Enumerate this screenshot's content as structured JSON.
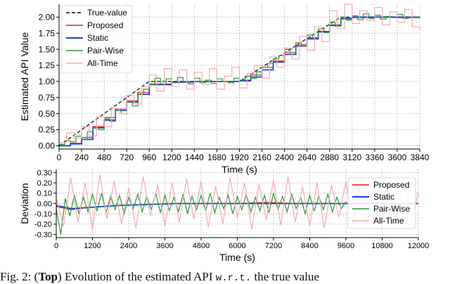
{
  "chart_data": [
    {
      "type": "line",
      "xlabel": "Time (s)",
      "ylabel": "Estimated API Value",
      "xlim": [
        0,
        3840
      ],
      "ylim": [
        -0.05,
        2.2
      ],
      "xticks": [
        0,
        240,
        480,
        720,
        960,
        1200,
        1440,
        1680,
        1920,
        2160,
        2400,
        2640,
        2880,
        3120,
        3360,
        3600,
        3840
      ],
      "yticks": [
        0.0,
        0.25,
        0.5,
        0.75,
        1.0,
        1.25,
        1.5,
        1.75,
        2.0
      ],
      "ytick_labels": [
        "0.00",
        "0.25",
        "0.50",
        "0.75",
        "1.00",
        "1.25",
        "1.50",
        "1.75",
        "2.00"
      ],
      "grid": true,
      "legend_position": "top-left",
      "series": [
        {
          "name": "True-value",
          "color": "#000000",
          "dashed": true,
          "x": [
            0,
            960,
            1920,
            3000,
            3840
          ],
          "y": [
            0.0,
            1.0,
            1.0,
            2.0,
            2.0
          ]
        },
        {
          "name": "Proposed",
          "color": "#e31a1c",
          "step": true,
          "x": [
            0,
            120,
            240,
            360,
            480,
            600,
            720,
            840,
            960,
            1200,
            1440,
            1680,
            1920,
            2040,
            2160,
            2280,
            2400,
            2520,
            2640,
            2760,
            2880,
            3000,
            3120,
            3360,
            3600,
            3840
          ],
          "y": [
            0.0,
            0.04,
            0.13,
            0.3,
            0.44,
            0.57,
            0.7,
            0.83,
            0.96,
            0.99,
            1.0,
            1.0,
            1.02,
            1.1,
            1.22,
            1.32,
            1.45,
            1.57,
            1.68,
            1.78,
            1.88,
            1.97,
            1.99,
            2.0,
            1.99,
            2.0
          ]
        },
        {
          "name": "Static",
          "color": "#1f3fcf",
          "step": true,
          "x": [
            0,
            120,
            240,
            360,
            480,
            600,
            720,
            840,
            960,
            1200,
            1440,
            1680,
            1920,
            2040,
            2160,
            2280,
            2400,
            2520,
            2640,
            2760,
            2880,
            3000,
            3120,
            3360,
            3600,
            3840
          ],
          "y": [
            0.0,
            0.03,
            0.1,
            0.28,
            0.4,
            0.55,
            0.68,
            0.8,
            0.95,
            0.99,
            1.0,
            1.0,
            1.01,
            1.07,
            1.18,
            1.3,
            1.42,
            1.55,
            1.66,
            1.77,
            1.87,
            1.98,
            2.0,
            2.0,
            2.0,
            2.0
          ]
        },
        {
          "name": "Pair-Wise",
          "color": "#2a9a2a",
          "step": true,
          "x": [
            0,
            60,
            120,
            180,
            240,
            300,
            360,
            420,
            480,
            540,
            600,
            660,
            720,
            780,
            840,
            900,
            960,
            1020,
            1080,
            1140,
            1200,
            1260,
            1320,
            1380,
            1440,
            1500,
            1560,
            1620,
            1680,
            1740,
            1800,
            1860,
            1920,
            1980,
            2040,
            2100,
            2160,
            2220,
            2280,
            2340,
            2400,
            2460,
            2520,
            2580,
            2640,
            2700,
            2760,
            2820,
            2880,
            2940,
            3000,
            3060,
            3120,
            3180,
            3240,
            3300,
            3360,
            3420,
            3480,
            3540,
            3600,
            3660,
            3720,
            3780,
            3840
          ],
          "y": [
            0.02,
            0.08,
            0.06,
            0.15,
            0.1,
            0.22,
            0.28,
            0.25,
            0.42,
            0.38,
            0.55,
            0.5,
            0.68,
            0.62,
            0.8,
            0.88,
            0.95,
            1.05,
            0.96,
            1.04,
            0.98,
            1.06,
            1.0,
            0.96,
            1.05,
            0.98,
            1.02,
            0.97,
            1.04,
            1.0,
            0.98,
            1.05,
            1.02,
            1.08,
            1.05,
            1.15,
            1.22,
            1.28,
            1.35,
            1.4,
            1.5,
            1.45,
            1.6,
            1.55,
            1.72,
            1.68,
            1.82,
            1.76,
            1.92,
            1.86,
            2.0,
            1.95,
            2.02,
            1.96,
            2.05,
            1.98,
            2.03,
            1.97,
            2.01,
            1.99,
            2.04,
            1.98,
            2.0,
            2.0,
            1.98
          ]
        },
        {
          "name": "All-Time",
          "color": "#f4a9b8",
          "step": true,
          "x": [
            0,
            80,
            160,
            240,
            320,
            400,
            480,
            560,
            640,
            720,
            800,
            880,
            960,
            1040,
            1120,
            1200,
            1280,
            1360,
            1440,
            1520,
            1600,
            1680,
            1760,
            1840,
            1920,
            2000,
            2080,
            2160,
            2240,
            2320,
            2400,
            2480,
            2560,
            2640,
            2720,
            2800,
            2880,
            2960,
            3040,
            3120,
            3200,
            3280,
            3360,
            3440,
            3520,
            3600,
            3680,
            3760,
            3840
          ],
          "y": [
            0.05,
            0.2,
            0.12,
            0.3,
            0.15,
            0.45,
            0.3,
            0.58,
            0.5,
            0.78,
            0.65,
            0.92,
            1.1,
            0.85,
            1.2,
            0.92,
            1.18,
            0.88,
            1.14,
            0.95,
            1.2,
            0.88,
            1.08,
            1.22,
            0.9,
            1.12,
            1.25,
            1.05,
            1.38,
            1.22,
            1.52,
            1.35,
            1.7,
            1.48,
            1.85,
            1.62,
            2.1,
            1.82,
            2.2,
            1.9,
            2.1,
            1.95,
            2.15,
            1.88,
            2.08,
            1.92,
            2.12,
            1.85,
            1.8
          ]
        }
      ]
    },
    {
      "type": "line",
      "xlabel": "Time (s)",
      "ylabel": "Deviation",
      "xlim": [
        0,
        12000
      ],
      "ylim": [
        -0.33,
        0.33
      ],
      "xticks": [
        0,
        1200,
        2400,
        3600,
        4800,
        6000,
        7200,
        8400,
        9600,
        10800,
        12000
      ],
      "yticks": [
        -0.3,
        -0.2,
        -0.1,
        0.0,
        0.1,
        0.2,
        0.3
      ],
      "ytick_labels": [
        "-0.30",
        "-0.20",
        "-0.10",
        "0.00",
        "0.10",
        "0.20",
        "0.30"
      ],
      "grid": true,
      "legend_position": "right",
      "series": [
        {
          "name": "Proposed",
          "color": "#e31a1c",
          "x": [
            0,
            500,
            1000,
            2000,
            3000,
            4000,
            5000,
            6000,
            7000,
            8000,
            9000,
            9600,
            10000,
            11000,
            12000
          ],
          "y": [
            -0.03,
            -0.06,
            -0.04,
            -0.02,
            -0.01,
            0.0,
            0.0,
            0.0,
            0.01,
            0.0,
            0.0,
            0.0,
            0.0,
            0.0,
            0.0
          ]
        },
        {
          "name": "Static",
          "color": "#1f3fcf",
          "x": [
            0,
            500,
            1000,
            2000,
            3000,
            4000,
            5000,
            6000,
            7000,
            8000,
            9000,
            9600,
            10000,
            11000,
            12000
          ],
          "y": [
            -0.02,
            -0.05,
            -0.04,
            -0.02,
            -0.01,
            0.0,
            0.0,
            0.0,
            0.0,
            0.0,
            0.0,
            0.0,
            0.0,
            0.0,
            0.0
          ]
        },
        {
          "name": "Pair-Wise",
          "color": "#2a9a2a",
          "x": [
            0,
            150,
            300,
            450,
            600,
            750,
            900,
            1050,
            1200,
            1350,
            1500,
            1650,
            1800,
            1950,
            2100,
            2250,
            2400,
            2550,
            2700,
            2850,
            3000,
            3150,
            3300,
            3450,
            3600,
            3750,
            3900,
            4050,
            4200,
            4350,
            4500,
            4650,
            4800,
            4950,
            5100,
            5250,
            5400,
            5550,
            5700,
            5850,
            6000,
            6150,
            6300,
            6450,
            6600,
            6750,
            6900,
            7050,
            7200,
            7350,
            7500,
            7650,
            7800,
            7950,
            8100,
            8250,
            8400,
            8550,
            8700,
            8850,
            9000,
            9150,
            9300,
            9450,
            9600
          ],
          "y": [
            -0.05,
            -0.3,
            0.05,
            -0.12,
            0.08,
            -0.1,
            0.06,
            -0.08,
            0.09,
            -0.07,
            0.1,
            -0.09,
            0.07,
            -0.06,
            0.08,
            -0.1,
            0.06,
            -0.05,
            0.09,
            -0.08,
            0.07,
            -0.06,
            0.1,
            -0.09,
            0.08,
            -0.07,
            0.06,
            -0.08,
            0.09,
            -0.1,
            0.07,
            -0.06,
            0.08,
            -0.07,
            0.1,
            -0.09,
            0.06,
            -0.05,
            0.08,
            -0.1,
            0.07,
            -0.06,
            0.09,
            -0.08,
            0.06,
            -0.07,
            0.08,
            -0.09,
            0.1,
            -0.06,
            0.07,
            -0.08,
            0.09,
            -0.05,
            0.06,
            -0.1,
            0.08,
            -0.07,
            0.07,
            -0.06,
            0.09,
            -0.08,
            0.06,
            -0.05,
            0.02
          ]
        },
        {
          "name": "All-Time",
          "color": "#f4a9b8",
          "x": [
            0,
            240,
            480,
            720,
            960,
            1200,
            1440,
            1680,
            1920,
            2160,
            2400,
            2640,
            2880,
            3120,
            3360,
            3600,
            3840,
            4080,
            4320,
            4560,
            4800,
            5040,
            5280,
            5520,
            5760,
            6000,
            6240,
            6480,
            6720,
            6960,
            7200,
            7440,
            7680,
            7920,
            8160,
            8400,
            8640,
            8880,
            9120,
            9360,
            9600,
            9840,
            10080,
            10320,
            10560,
            10800,
            11040,
            11280,
            11520,
            11760,
            12000
          ],
          "y": [
            0.05,
            -0.22,
            0.25,
            -0.18,
            0.2,
            -0.25,
            0.28,
            -0.15,
            0.22,
            -0.2,
            0.15,
            -0.24,
            0.26,
            -0.12,
            0.18,
            -0.22,
            0.2,
            -0.18,
            0.24,
            -0.15,
            0.21,
            -0.23,
            0.17,
            -0.2,
            0.25,
            -0.14,
            0.2,
            -0.25,
            0.19,
            -0.16,
            0.23,
            -0.21,
            0.26,
            -0.18,
            0.16,
            -0.22,
            0.2,
            -0.24,
            0.18,
            -0.13,
            0.21,
            -0.2,
            0.24,
            -0.17,
            0.19,
            -0.23,
            0.15,
            -0.19,
            0.22,
            -0.16,
            0.1
          ]
        }
      ]
    }
  ],
  "caption": {
    "prefix": "Fig. 2: (",
    "bold": "Top",
    "middle": ") Evolution of the estimated API ",
    "mono": "w.r.t.",
    "suffix": " the true value"
  }
}
